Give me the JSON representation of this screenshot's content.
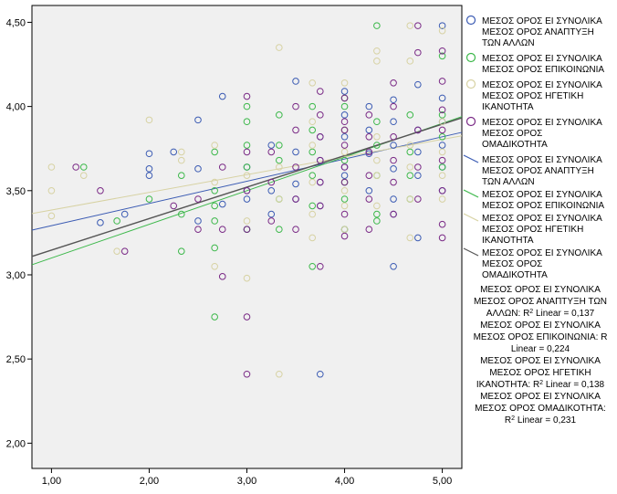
{
  "chart_data": {
    "type": "scatter",
    "title": "",
    "xlabel": "",
    "ylabel": "",
    "xlim": [
      0.8,
      5.2
    ],
    "ylim": [
      1.85,
      4.6
    ],
    "x_ticks": [
      "1,00",
      "2,00",
      "3,00",
      "4,00",
      "5,00"
    ],
    "y_ticks": [
      "2,00",
      "2,50",
      "3,00",
      "3,50",
      "4,00",
      "4,50"
    ],
    "x_tick_values": [
      1,
      2,
      3,
      4,
      5
    ],
    "y_tick_values": [
      2.0,
      2.5,
      3.0,
      3.5,
      4.0,
      4.5
    ],
    "grid": false,
    "legend_position": "right",
    "series": [
      {
        "name": "ΜΕΣΟΣ ΟΡΟΣ ΕΙ ΣΥΝΟΛΙΚΑ ΜΕΣΟΣ ΟΡΟΣ ΑΝΑΠΤΥΞΗ ΤΩΝ ΑΛΛΩΝ",
        "color": "#3b5bb3",
        "fit": {
          "intercept": 3.16,
          "slope": 0.132
        },
        "points": [
          [
            1.5,
            3.31
          ],
          [
            1.75,
            3.36
          ],
          [
            2.0,
            3.59
          ],
          [
            2.0,
            3.63
          ],
          [
            2.0,
            3.72
          ],
          [
            2.25,
            3.73
          ],
          [
            2.5,
            3.63
          ],
          [
            2.5,
            3.92
          ],
          [
            2.5,
            3.32
          ],
          [
            2.75,
            3.42
          ],
          [
            2.75,
            4.06
          ],
          [
            3.0,
            3.27
          ],
          [
            3.0,
            3.45
          ],
          [
            3.0,
            3.5
          ],
          [
            3.0,
            3.64
          ],
          [
            3.25,
            3.5
          ],
          [
            3.25,
            3.36
          ],
          [
            3.25,
            3.77
          ],
          [
            3.5,
            3.45
          ],
          [
            3.5,
            3.54
          ],
          [
            3.5,
            4.15
          ],
          [
            3.5,
            3.73
          ],
          [
            3.75,
            3.41
          ],
          [
            3.75,
            3.55
          ],
          [
            3.75,
            3.68
          ],
          [
            3.75,
            3.82
          ],
          [
            3.75,
            2.41
          ],
          [
            4.0,
            3.59
          ],
          [
            4.0,
            3.64
          ],
          [
            4.0,
            3.82
          ],
          [
            4.0,
            3.95
          ],
          [
            4.0,
            4.09
          ],
          [
            4.0,
            3.27
          ],
          [
            4.25,
            3.5
          ],
          [
            4.25,
            3.72
          ],
          [
            4.25,
            3.86
          ],
          [
            4.25,
            4.0
          ],
          [
            4.5,
            3.36
          ],
          [
            4.5,
            3.45
          ],
          [
            4.5,
            3.63
          ],
          [
            4.5,
            3.77
          ],
          [
            4.5,
            3.91
          ],
          [
            4.5,
            4.04
          ],
          [
            4.5,
            3.05
          ],
          [
            4.75,
            3.59
          ],
          [
            4.75,
            3.73
          ],
          [
            4.75,
            3.86
          ],
          [
            4.75,
            4.13
          ],
          [
            4.75,
            3.22
          ],
          [
            5.0,
            3.5
          ],
          [
            5.0,
            3.64
          ],
          [
            5.0,
            3.77
          ],
          [
            5.0,
            3.91
          ],
          [
            5.0,
            4.05
          ],
          [
            5.0,
            4.48
          ]
        ]
      },
      {
        "name": "ΜΕΣΟΣ ΟΡΟΣ ΕΙ ΣΥΝΟΛΙΚΑ ΜΕΣΟΣ ΟΡΟΣ ΕΠΙΚΟΙΝΩΝΙΑ",
        "color": "#3cb84a",
        "fit": {
          "intercept": 2.9,
          "slope": 0.2
        },
        "points": [
          [
            1.33,
            3.64
          ],
          [
            1.67,
            3.32
          ],
          [
            2.0,
            3.45
          ],
          [
            2.33,
            3.36
          ],
          [
            2.33,
            3.59
          ],
          [
            2.33,
            3.14
          ],
          [
            2.67,
            3.16
          ],
          [
            2.67,
            3.32
          ],
          [
            2.67,
            3.41
          ],
          [
            2.67,
            3.5
          ],
          [
            2.67,
            2.75
          ],
          [
            2.67,
            3.73
          ],
          [
            3.0,
            3.27
          ],
          [
            3.0,
            3.64
          ],
          [
            3.0,
            3.77
          ],
          [
            3.0,
            3.91
          ],
          [
            3.0,
            4.0
          ],
          [
            3.33,
            3.27
          ],
          [
            3.33,
            3.45
          ],
          [
            3.33,
            3.68
          ],
          [
            3.33,
            3.77
          ],
          [
            3.33,
            3.95
          ],
          [
            3.67,
            3.05
          ],
          [
            3.67,
            3.41
          ],
          [
            3.67,
            3.59
          ],
          [
            3.67,
            3.73
          ],
          [
            3.67,
            3.86
          ],
          [
            3.67,
            4.0
          ],
          [
            4.0,
            3.27
          ],
          [
            4.0,
            3.45
          ],
          [
            4.0,
            3.55
          ],
          [
            4.0,
            3.68
          ],
          [
            4.0,
            3.86
          ],
          [
            4.0,
            4.0
          ],
          [
            4.0,
            4.05
          ],
          [
            4.33,
            3.32
          ],
          [
            4.33,
            3.36
          ],
          [
            4.33,
            3.59
          ],
          [
            4.33,
            3.77
          ],
          [
            4.33,
            3.91
          ],
          [
            4.33,
            4.48
          ],
          [
            4.67,
            3.45
          ],
          [
            4.67,
            3.59
          ],
          [
            4.67,
            3.73
          ],
          [
            4.67,
            3.95
          ],
          [
            5.0,
            3.64
          ],
          [
            5.0,
            3.82
          ],
          [
            5.0,
            3.95
          ],
          [
            5.0,
            4.3
          ]
        ]
      },
      {
        "name": "ΜΕΣΟΣ ΟΡΟΣ ΕΙ ΣΥΝΟΛΙΚΑ ΜΕΣΟΣ ΟΡΟΣ ΗΓΕΤΙΚΗ ΙΚΑΝΟΤΗΤΑ",
        "color": "#d7d2a3",
        "fit": {
          "intercept": 3.28,
          "slope": 0.105
        },
        "points": [
          [
            1.0,
            3.64
          ],
          [
            1.0,
            3.5
          ],
          [
            1.0,
            3.35
          ],
          [
            1.33,
            3.59
          ],
          [
            1.67,
            3.14
          ],
          [
            2.0,
            3.92
          ],
          [
            2.33,
            3.68
          ],
          [
            2.33,
            3.73
          ],
          [
            2.67,
            3.05
          ],
          [
            2.67,
            3.55
          ],
          [
            2.67,
            3.77
          ],
          [
            3.0,
            2.98
          ],
          [
            3.0,
            3.32
          ],
          [
            3.0,
            3.59
          ],
          [
            3.33,
            2.41
          ],
          [
            3.33,
            3.45
          ],
          [
            3.33,
            3.64
          ],
          [
            3.33,
            4.35
          ],
          [
            3.67,
            3.22
          ],
          [
            3.67,
            3.36
          ],
          [
            3.67,
            3.55
          ],
          [
            3.67,
            3.77
          ],
          [
            3.67,
            3.91
          ],
          [
            3.67,
            4.14
          ],
          [
            4.0,
            3.27
          ],
          [
            4.0,
            3.41
          ],
          [
            4.0,
            3.5
          ],
          [
            4.0,
            3.73
          ],
          [
            4.0,
            3.86
          ],
          [
            4.0,
            4.14
          ],
          [
            4.33,
            3.41
          ],
          [
            4.33,
            3.59
          ],
          [
            4.33,
            3.68
          ],
          [
            4.33,
            3.82
          ],
          [
            4.33,
            4.27
          ],
          [
            4.33,
            4.33
          ],
          [
            4.67,
            3.22
          ],
          [
            4.67,
            3.45
          ],
          [
            4.67,
            3.64
          ],
          [
            4.67,
            3.77
          ],
          [
            4.67,
            4.27
          ],
          [
            4.67,
            4.48
          ],
          [
            5.0,
            3.45
          ],
          [
            5.0,
            3.59
          ],
          [
            5.0,
            3.73
          ],
          [
            5.0,
            3.91
          ],
          [
            5.0,
            4.45
          ]
        ]
      },
      {
        "name": "ΜΕΣΟΣ ΟΡΟΣ ΕΙ ΣΥΝΟΛΙΚΑ ΜΕΣΟΣ ΟΡΟΣ ΟΜΑΔΙΚΟΤΗΤΑ",
        "color": "#7a2a86",
        "fit": {
          "intercept": 2.96,
          "slope": 0.187
        },
        "points": [
          [
            1.25,
            3.64
          ],
          [
            1.5,
            3.5
          ],
          [
            1.75,
            3.14
          ],
          [
            2.25,
            3.41
          ],
          [
            2.5,
            3.45
          ],
          [
            2.5,
            3.27
          ],
          [
            2.75,
            3.27
          ],
          [
            2.75,
            3.64
          ],
          [
            2.75,
            2.99
          ],
          [
            3.0,
            2.41
          ],
          [
            3.0,
            2.75
          ],
          [
            3.0,
            3.27
          ],
          [
            3.0,
            3.5
          ],
          [
            3.0,
            3.73
          ],
          [
            3.0,
            4.06
          ],
          [
            3.25,
            3.32
          ],
          [
            3.25,
            3.55
          ],
          [
            3.25,
            3.73
          ],
          [
            3.5,
            3.45
          ],
          [
            3.5,
            3.64
          ],
          [
            3.5,
            3.86
          ],
          [
            3.5,
            4.0
          ],
          [
            3.5,
            3.27
          ],
          [
            3.75,
            3.05
          ],
          [
            3.75,
            3.41
          ],
          [
            3.75,
            3.55
          ],
          [
            3.75,
            3.68
          ],
          [
            3.75,
            3.82
          ],
          [
            3.75,
            3.95
          ],
          [
            3.75,
            4.09
          ],
          [
            4.0,
            3.23
          ],
          [
            4.0,
            3.36
          ],
          [
            4.0,
            3.55
          ],
          [
            4.0,
            3.64
          ],
          [
            4.0,
            3.77
          ],
          [
            4.0,
            3.86
          ],
          [
            4.0,
            3.91
          ],
          [
            4.0,
            4.05
          ],
          [
            4.25,
            3.27
          ],
          [
            4.25,
            3.45
          ],
          [
            4.25,
            3.59
          ],
          [
            4.25,
            3.73
          ],
          [
            4.25,
            3.82
          ],
          [
            4.25,
            3.95
          ],
          [
            4.5,
            3.36
          ],
          [
            4.5,
            3.55
          ],
          [
            4.5,
            3.68
          ],
          [
            4.5,
            3.82
          ],
          [
            4.5,
            4.0
          ],
          [
            4.5,
            4.14
          ],
          [
            4.75,
            3.45
          ],
          [
            4.75,
            3.64
          ],
          [
            4.75,
            3.86
          ],
          [
            4.75,
            4.32
          ],
          [
            4.75,
            4.48
          ],
          [
            5.0,
            3.3
          ],
          [
            5.0,
            3.5
          ],
          [
            5.0,
            3.68
          ],
          [
            5.0,
            3.86
          ],
          [
            5.0,
            3.98
          ],
          [
            5.0,
            4.15
          ],
          [
            5.0,
            4.33
          ],
          [
            5.0,
            3.22
          ]
        ]
      }
    ]
  },
  "legend": {
    "markers": [
      {
        "lines": [
          "ΜΕΣΟΣ ΟΡΟΣ ΕΙ ΣΥΝΟΛΙΚΑ",
          "ΜΕΣΟΣ ΟΡΟΣ ΑΝΑΠΤΥΞΗ",
          "ΤΩΝ ΑΛΛΩΝ"
        ]
      },
      {
        "lines": [
          "ΜΕΣΟΣ ΟΡΟΣ ΕΙ ΣΥΝΟΛΙΚΑ",
          "ΜΕΣΟΣ ΟΡΟΣ ΕΠΙΚΟΙΝΩΝΙΑ"
        ]
      },
      {
        "lines": [
          "ΜΕΣΟΣ ΟΡΟΣ ΕΙ ΣΥΝΟΛΙΚΑ",
          "ΜΕΣΟΣ ΟΡΟΣ ΗΓΕΤΙΚΗ",
          "ΙΚΑΝΟΤΗΤΑ"
        ]
      },
      {
        "lines": [
          "ΜΕΣΟΣ ΟΡΟΣ ΕΙ ΣΥΝΟΛΙΚΑ",
          "ΜΕΣΟΣ ΟΡΟΣ",
          "ΟΜΑΔΙΚΟΤΗΤΑ"
        ]
      }
    ],
    "fit_lines": [
      {
        "lines": [
          "ΜΕΣΟΣ ΟΡΟΣ ΕΙ ΣΥΝΟΛΙΚΑ",
          "ΜΕΣΟΣ ΟΡΟΣ ΑΝΑΠΤΥΞΗ",
          "ΤΩΝ ΑΛΛΩΝ"
        ]
      },
      {
        "lines": [
          "ΜΕΣΟΣ ΟΡΟΣ ΕΙ ΣΥΝΟΛΙΚΑ",
          "ΜΕΣΟΣ ΟΡΟΣ ΕΠΙΚΟΙΝΩΝΙΑ"
        ]
      },
      {
        "lines": [
          "ΜΕΣΟΣ ΟΡΟΣ ΕΙ ΣΥΝΟΛΙΚΑ",
          "ΜΕΣΟΣ ΟΡΟΣ ΗΓΕΤΙΚΗ",
          "ΙΚΑΝΟΤΗΤΑ"
        ]
      },
      {
        "lines": [
          "ΜΕΣΟΣ ΟΡΟΣ ΕΙ ΣΥΝΟΛΙΚΑ",
          "ΜΕΣΟΣ ΟΡΟΣ",
          "ΟΜΑΔΙΚΟΤΗΤΑ"
        ]
      }
    ],
    "r2": [
      {
        "lines": [
          "ΜΕΣΟΣ ΟΡΟΣ ΕΙ ΣΥΝΟΛΙΚΑ",
          "ΜΕΣΟΣ ΟΡΟΣ ΑΝΑΠΤΥΞΗ ΤΩΝ"
        ],
        "prefix": "ΑΛΛΩΝ: R",
        "suffix": " Linear = 0,137"
      },
      {
        "lines": [
          "ΜΕΣΟΣ ΟΡΟΣ ΕΙ ΣΥΝΟΛΙΚΑ",
          "ΜΕΣΟΣ ΟΡΟΣ ΕΠΙΚΟΙΝΩΝΙΑ: R"
        ],
        "prefix": "Linear = 0,224",
        "suffix": ""
      },
      {
        "lines": [
          "ΜΕΣΟΣ ΟΡΟΣ ΕΙ ΣΥΝΟΛΙΚΑ",
          "ΜΕΣΟΣ ΟΡΟΣ ΗΓΕΤΙΚΗ"
        ],
        "prefix": "ΙΚΑΝΟΤΗΤΑ: R",
        "suffix": " Linear = 0,138"
      },
      {
        "lines": [
          "ΜΕΣΟΣ ΟΡΟΣ ΕΙ ΣΥΝΟΛΙΚΑ",
          "ΜΕΣΟΣ ΟΡΟΣ ΟΜΑΔΙΚΟΤΗΤΑ:"
        ],
        "prefix": "R",
        "suffix": " Linear = 0,231"
      }
    ],
    "sup": "2"
  }
}
